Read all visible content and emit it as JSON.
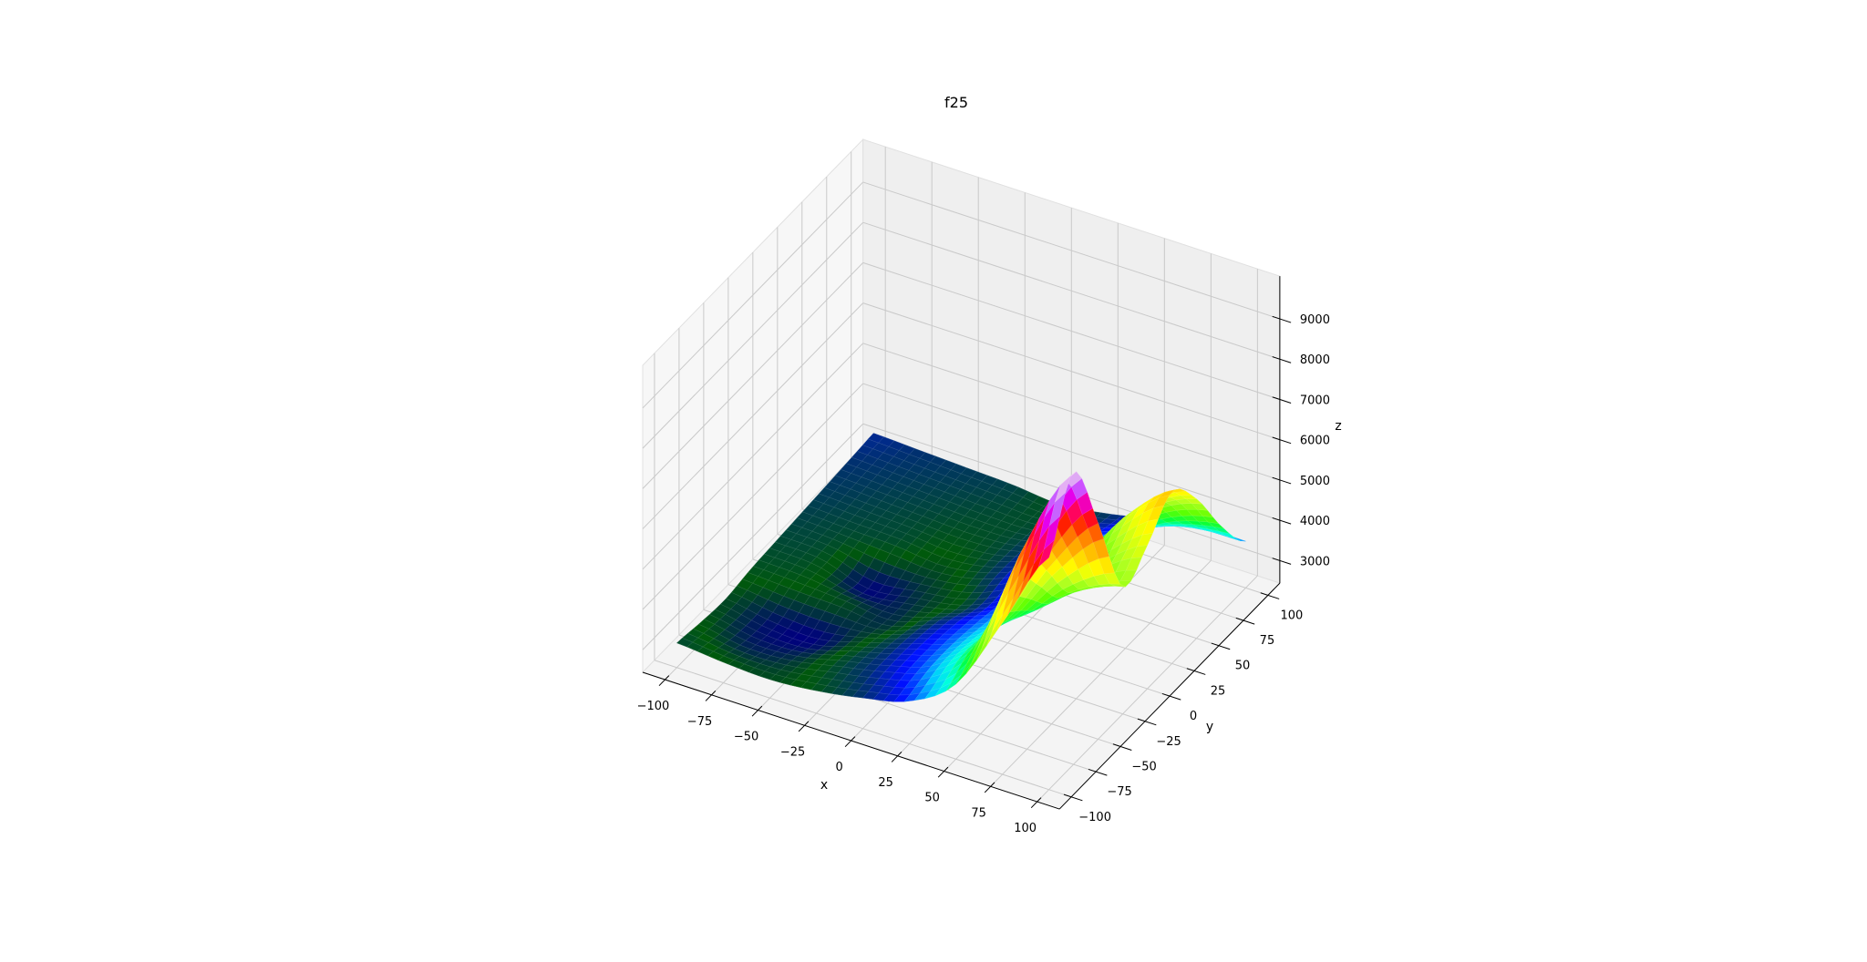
{
  "chart_data": {
    "type": "surface",
    "title": "f25",
    "xlabel": "x",
    "ylabel": "y",
    "zlabel": "z",
    "colormap": "gist_ncar",
    "grid": true,
    "xlim": [
      -112,
      112
    ],
    "ylim": [
      -112,
      112
    ],
    "zlim": [
      2440,
      10060
    ],
    "x_ticks": [
      -100,
      -75,
      -50,
      -25,
      0,
      25,
      50,
      75,
      100
    ],
    "y_ticks": [
      -100,
      -75,
      -50,
      -25,
      0,
      25,
      50,
      75,
      100
    ],
    "z_ticks": [
      3000,
      4000,
      5000,
      6000,
      7000,
      8000,
      9000
    ],
    "x_tick_labels": [
      "−100",
      "−75",
      "−50",
      "−25",
      "0",
      "25",
      "50",
      "75",
      "100"
    ],
    "y_tick_labels": [
      "−100",
      "−75",
      "−50",
      "−25",
      "0",
      "25",
      "50",
      "75",
      "100"
    ],
    "z_tick_labels": [
      "3000",
      "4000",
      "5000",
      "6000",
      "7000",
      "8000",
      "9000"
    ],
    "x": [
      -100,
      -75,
      -50,
      -25,
      0,
      25,
      50,
      75,
      100
    ],
    "y": [
      -100,
      -75,
      -50,
      -25,
      0,
      25,
      50,
      75,
      100
    ],
    "z": [
      [
        3050,
        2950,
        2900,
        3000,
        3200,
        3500,
        4300,
        6200,
        8200
      ],
      [
        2950,
        2750,
        2800,
        3050,
        3300,
        3700,
        4800,
        7600,
        9700
      ],
      [
        2900,
        2700,
        2650,
        2950,
        3300,
        3700,
        4600,
        6400,
        7800
      ],
      [
        3000,
        2950,
        2900,
        2800,
        3200,
        3600,
        4200,
        5100,
        5600
      ],
      [
        3050,
        3000,
        2650,
        2800,
        3000,
        3500,
        4100,
        5200,
        6000
      ],
      [
        3100,
        3050,
        3000,
        2900,
        3100,
        3600,
        4300,
        5700,
        6700
      ],
      [
        3150,
        3100,
        3050,
        3000,
        3100,
        3500,
        4100,
        5300,
        5900
      ],
      [
        3200,
        3150,
        3100,
        3050,
        3050,
        3300,
        3700,
        4300,
        4600
      ],
      [
        3250,
        3200,
        3150,
        3100,
        3000,
        3150,
        3400,
        3600,
        3600
      ]
    ],
    "colors": {
      "pane_left": "#f7f7f7",
      "pane_back": "#efefef",
      "pane_floor": "#f4f4f4",
      "grid": "#c9c9c9",
      "axis": "#000000"
    }
  }
}
